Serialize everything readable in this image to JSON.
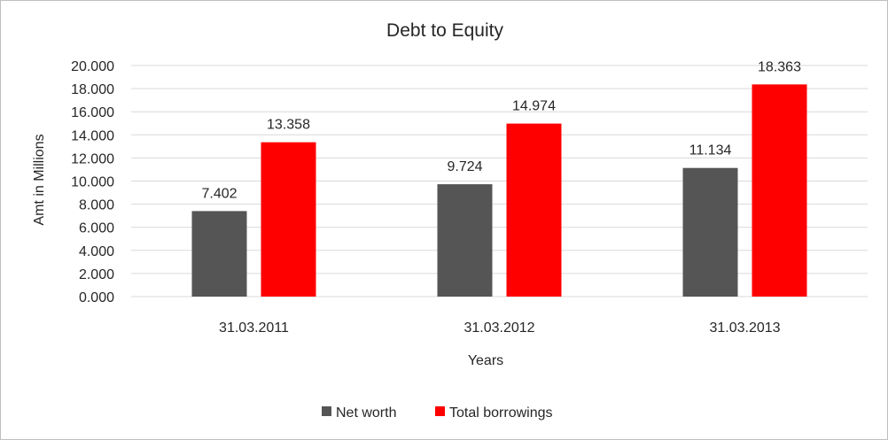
{
  "chart_data": {
    "type": "bar",
    "title": "Debt to Equity",
    "xlabel": "Years",
    "ylabel": "Amt in Millions",
    "categories": [
      "31.03.2011",
      "31.03.2012",
      "31.03.2013"
    ],
    "ylim": [
      0,
      20
    ],
    "yticks": [
      0,
      2,
      4,
      6,
      8,
      10,
      12,
      14,
      16,
      18,
      20
    ],
    "ytick_labels": [
      "0.000",
      "2.000",
      "4.000",
      "6.000",
      "8.000",
      "10.000",
      "12.000",
      "14.000",
      "16.000",
      "18.000",
      "20.000"
    ],
    "grid": true,
    "legend_position": "bottom",
    "series": [
      {
        "name": "Net worth",
        "color": "#555555",
        "values": [
          7.402,
          9.724,
          11.134
        ],
        "labels": [
          "7.402",
          "9.724",
          "11.134"
        ]
      },
      {
        "name": "Total borrowings",
        "color": "#ff0000",
        "values": [
          13.358,
          14.974,
          18.363
        ],
        "labels": [
          "13.358",
          "14.974",
          "18.363"
        ]
      }
    ]
  }
}
